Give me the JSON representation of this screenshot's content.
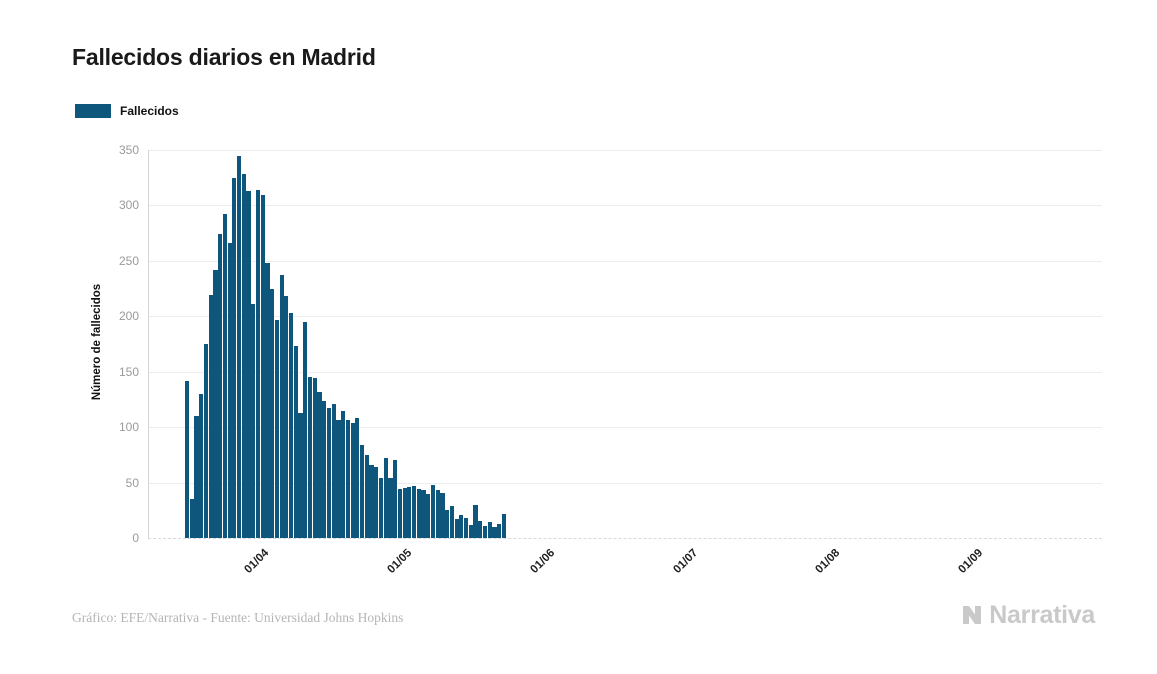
{
  "header": {
    "title": "Fallecidos diarios en Madrid"
  },
  "legend": {
    "label": "Fallecidos",
    "swatch_color": "#0f567c"
  },
  "chart_data": {
    "type": "bar",
    "title": "Fallecidos diarios en Madrid",
    "xlabel": "",
    "ylabel": "Número de fallecidos",
    "ylim": [
      0,
      350
    ],
    "y_ticks": [
      0,
      50,
      100,
      150,
      200,
      250,
      300,
      350
    ],
    "x_ticks": [
      "01/04",
      "01/05",
      "01/06",
      "01/07",
      "01/08",
      "01/09"
    ],
    "grid": true,
    "legend_position": "top-left",
    "bar_color": "#0f567c",
    "series": [
      {
        "name": "Fallecidos",
        "values": [
          142,
          35,
          110,
          130,
          175,
          219,
          242,
          274,
          292,
          266,
          325,
          345,
          328,
          313,
          211,
          314,
          309,
          248,
          225,
          197,
          237,
          218,
          203,
          173,
          113,
          195,
          145,
          144,
          132,
          124,
          117,
          121,
          106,
          115,
          106,
          104,
          108,
          84,
          75,
          66,
          64,
          54,
          72,
          54,
          70,
          44,
          45,
          46,
          47,
          44,
          43,
          40,
          48,
          43,
          41,
          25,
          29,
          17,
          21,
          18,
          12,
          30,
          15,
          11,
          14,
          10,
          13,
          22
        ]
      }
    ]
  },
  "footer": {
    "credit": "Gráfico: EFE/Narrativa - Fuente: Universidad Johns Hopkins",
    "logo_text": "Narrativa"
  }
}
